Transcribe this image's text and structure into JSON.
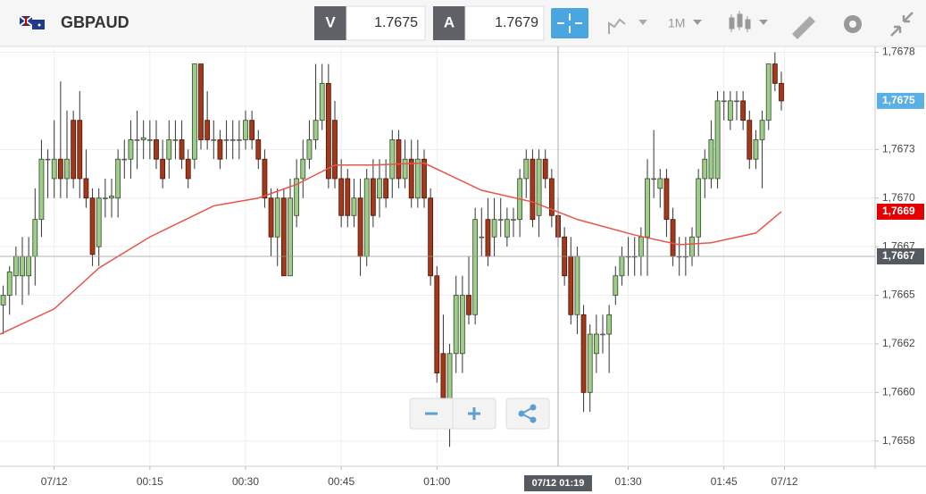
{
  "toolbar": {
    "symbol": "GBPAUD",
    "bid_label": "V",
    "bid": "1.7675",
    "ask_label": "A",
    "ask": "1.7679",
    "timeframe": "1M"
  },
  "chart_data": {
    "type": "candlestick",
    "x": [
      -8,
      -7,
      -6,
      -5,
      -4,
      -3,
      -2,
      -1,
      0,
      1,
      2,
      3,
      4,
      5,
      6,
      7,
      8,
      9,
      10,
      11,
      12,
      13,
      14,
      15,
      16,
      17,
      18,
      19,
      20,
      21,
      22,
      23,
      24,
      25,
      26,
      27,
      28,
      29,
      30,
      31,
      32,
      33,
      34,
      35,
      36,
      37,
      38,
      39,
      40,
      41,
      42,
      43,
      44,
      45,
      46,
      47,
      48,
      49,
      50,
      51,
      52,
      53,
      54,
      55,
      56,
      57,
      58,
      59,
      60,
      61,
      62,
      63,
      64,
      65,
      66,
      67,
      68,
      69,
      70,
      71,
      72,
      73,
      74,
      75,
      76,
      77,
      78,
      79,
      80,
      81,
      82,
      83,
      84,
      85,
      86,
      87,
      88,
      89,
      90,
      91,
      92,
      93,
      94,
      95,
      96,
      97,
      98,
      99,
      100,
      101,
      102,
      103,
      104,
      105,
      106,
      107,
      108,
      109,
      110,
      111,
      112,
      113,
      114
    ],
    "open": [
      1.76645,
      1.7665,
      1.7666,
      1.7666,
      1.7666,
      1.7667,
      1.76689,
      1.7672,
      1.7671,
      1.7672,
      1.7671,
      1.7674,
      1.7674,
      1.7671,
      1.767,
      1.76675,
      1.767,
      1.767,
      1.767,
      1.7672,
      1.7672,
      1.7673,
      1.7673,
      1.7673,
      1.7673,
      1.7672,
      1.7672,
      1.7673,
      1.7673,
      1.7672,
      1.7672,
      1.76769,
      1.7674,
      1.7673,
      1.7673,
      1.7673,
      1.7673,
      1.7673,
      1.7673,
      1.7674,
      1.7673,
      1.7672,
      1.767,
      1.7668,
      1.767,
      1.7666,
      1.76691,
      1.7671,
      1.7672,
      1.7673,
      1.7674,
      1.76759,
      1.7674,
      1.7671,
      1.7671,
      1.76691,
      1.767,
      1.7667,
      1.7671,
      1.767,
      1.7671,
      1.7671,
      1.7673,
      1.7671,
      1.7672,
      1.767,
      1.7672,
      1.767,
      1.7666,
      1.7662,
      1.7659,
      1.7662,
      1.7662,
      1.7665,
      1.7664,
      1.7668,
      1.76689,
      1.7668,
      1.76689,
      1.7668,
      1.76689,
      1.76689,
      1.7671,
      1.7672,
      1.76691,
      1.7672,
      1.7671,
      1.76691,
      1.7668,
      1.7667,
      1.7664,
      1.7664,
      1.766,
      1.7662,
      1.7663,
      1.7663,
      1.7665,
      1.7666,
      1.7667,
      1.7667,
      1.7667,
      1.7668,
      1.7671,
      1.76705,
      1.7671,
      1.76689,
      1.7667,
      1.7667,
      1.7667,
      1.7668,
      1.7671,
      1.7671,
      1.7671,
      1.7675,
      1.7674,
      1.7675,
      1.7675,
      1.7674,
      1.7672,
      1.7673,
      1.7674,
      1.76769,
      1.76759
    ],
    "high": [
      1.76655,
      1.76665,
      1.76675,
      1.7668,
      1.7668,
      1.76705,
      1.7673,
      1.76725,
      1.7674,
      1.7676,
      1.76745,
      1.76745,
      1.76755,
      1.76725,
      1.76705,
      1.76705,
      1.7671,
      1.7671,
      1.76725,
      1.7673,
      1.7674,
      1.76745,
      1.7674,
      1.7674,
      1.7674,
      1.7673,
      1.7674,
      1.7674,
      1.7674,
      1.76725,
      1.76769,
      1.76769,
      1.76755,
      1.7674,
      1.76735,
      1.7674,
      1.7674,
      1.7674,
      1.76745,
      1.76745,
      1.76735,
      1.76725,
      1.76705,
      1.76705,
      1.76705,
      1.7671,
      1.7672,
      1.7673,
      1.7674,
      1.76769,
      1.76769,
      1.76769,
      1.7675,
      1.7672,
      1.76715,
      1.7671,
      1.7671,
      1.76715,
      1.7672,
      1.7672,
      1.7672,
      1.76735,
      1.76735,
      1.7673,
      1.7673,
      1.7673,
      1.76725,
      1.76705,
      1.76665,
      1.7664,
      1.76625,
      1.7666,
      1.7666,
      1.7667,
      1.76695,
      1.76695,
      1.767,
      1.767,
      1.767,
      1.76695,
      1.76695,
      1.76715,
      1.76725,
      1.76725,
      1.76725,
      1.76725,
      1.76715,
      1.767,
      1.76685,
      1.7668,
      1.76675,
      1.76645,
      1.76635,
      1.7664,
      1.7664,
      1.76645,
      1.76665,
      1.76675,
      1.7668,
      1.7668,
      1.76685,
      1.7672,
      1.76735,
      1.76715,
      1.76715,
      1.76695,
      1.7668,
      1.7668,
      1.76685,
      1.76715,
      1.76725,
      1.7674,
      1.76755,
      1.76755,
      1.76755,
      1.76755,
      1.76755,
      1.76745,
      1.76735,
      1.76745,
      1.76769,
      1.76775,
      1.76765
    ],
    "low": [
      1.7663,
      1.7664,
      1.7665,
      1.76645,
      1.7665,
      1.76655,
      1.7668,
      1.767,
      1.767,
      1.767,
      1.767,
      1.76705,
      1.767,
      1.76695,
      1.76665,
      1.76665,
      1.7669,
      1.7669,
      1.7669,
      1.7671,
      1.7671,
      1.76715,
      1.7672,
      1.7672,
      1.76715,
      1.76705,
      1.7671,
      1.7672,
      1.76715,
      1.76705,
      1.76715,
      1.76725,
      1.76725,
      1.7672,
      1.76715,
      1.7672,
      1.7672,
      1.7672,
      1.76725,
      1.76725,
      1.76715,
      1.76695,
      1.7667,
      1.76665,
      1.7666,
      1.7666,
      1.76685,
      1.767,
      1.76715,
      1.76725,
      1.76735,
      1.76705,
      1.76705,
      1.76685,
      1.76685,
      1.76685,
      1.7666,
      1.76665,
      1.76685,
      1.7669,
      1.76695,
      1.767,
      1.76705,
      1.76705,
      1.76695,
      1.76695,
      1.76695,
      1.76655,
      1.76605,
      1.76585,
      1.76572,
      1.7661,
      1.7661,
      1.76635,
      1.76635,
      1.7667,
      1.76665,
      1.7667,
      1.7668,
      1.76675,
      1.7668,
      1.7668,
      1.767,
      1.76685,
      1.7668,
      1.76705,
      1.76685,
      1.76675,
      1.76655,
      1.76635,
      1.7663,
      1.7659,
      1.7659,
      1.7661,
      1.7662,
      1.7661,
      1.76645,
      1.76655,
      1.7666,
      1.7666,
      1.7666,
      1.7666,
      1.767,
      1.76695,
      1.7668,
      1.76665,
      1.7666,
      1.7666,
      1.76665,
      1.7667,
      1.767,
      1.76705,
      1.76705,
      1.7674,
      1.76735,
      1.7674,
      1.76735,
      1.76715,
      1.76715,
      1.76705,
      1.76735,
      1.76755,
      1.76745
    ],
    "close": [
      1.7665,
      1.76662,
      1.7667,
      1.7667,
      1.7667,
      1.76689,
      1.7672,
      1.7672,
      1.7672,
      1.7671,
      1.7672,
      1.7671,
      1.7671,
      1.767,
      1.76671,
      1.767,
      1.767,
      1.76701,
      1.7672,
      1.7672,
      1.7673,
      1.7673,
      1.76731,
      1.7673,
      1.7672,
      1.7671,
      1.7673,
      1.7673,
      1.7672,
      1.7671,
      1.76769,
      1.7673,
      1.7673,
      1.7673,
      1.7672,
      1.7673,
      1.7673,
      1.7673,
      1.7674,
      1.7673,
      1.7672,
      1.767,
      1.7668,
      1.767,
      1.7666,
      1.767,
      1.7671,
      1.7672,
      1.7673,
      1.7674,
      1.76759,
      1.7671,
      1.7671,
      1.76691,
      1.76691,
      1.767,
      1.7667,
      1.7671,
      1.76691,
      1.7671,
      1.767,
      1.7673,
      1.7671,
      1.7672,
      1.767,
      1.7672,
      1.767,
      1.7666,
      1.7661,
      1.7659,
      1.7662,
      1.7665,
      1.7665,
      1.7664,
      1.76689,
      1.7668,
      1.7667,
      1.76689,
      1.76689,
      1.76689,
      1.76689,
      1.7671,
      1.7672,
      1.76689,
      1.7672,
      1.7671,
      1.76691,
      1.7668,
      1.7666,
      1.7664,
      1.7667,
      1.766,
      1.7663,
      1.7663,
      1.7663,
      1.7664,
      1.7666,
      1.7667,
      1.7667,
      1.7667,
      1.7668,
      1.7671,
      1.7671,
      1.7671,
      1.76689,
      1.7667,
      1.7667,
      1.7667,
      1.7668,
      1.7671,
      1.7672,
      1.7673,
      1.7675,
      1.7675,
      1.7675,
      1.7675,
      1.7674,
      1.7672,
      1.7673,
      1.7674,
      1.76769,
      1.76759,
      1.7675
    ],
    "up_color": "#9fcc8a",
    "down_color": "#a3381b",
    "ma": {
      "color": "#e8534a",
      "x": [
        -8.5,
        0,
        7,
        15,
        25,
        32,
        38,
        44,
        50,
        58,
        67,
        75,
        82,
        91,
        98,
        103,
        110,
        114
      ],
      "values": [
        1.7663,
        1.76643,
        1.76664,
        1.7668,
        1.76696,
        1.767,
        1.76707,
        1.76717,
        1.76717,
        1.76718,
        1.76704,
        1.76698,
        1.76689,
        1.76681,
        1.76676,
        1.76677,
        1.76682,
        1.76693
      ]
    },
    "xlim": [
      -8.5,
      128.7
    ],
    "ylim": [
      1.76562,
      1.76778
    ],
    "xticks": [
      {
        "value": 0,
        "label": "07/12"
      },
      {
        "value": 15,
        "label": "00:15"
      },
      {
        "value": 30,
        "label": "00:30"
      },
      {
        "value": 45,
        "label": "00:45"
      },
      {
        "value": 60,
        "label": "01:00"
      },
      {
        "value": 90,
        "label": "01:30"
      },
      {
        "value": 105,
        "label": "01:45"
      },
      {
        "value": 114.5,
        "label": "07/12"
      }
    ],
    "yticks": [
      {
        "value": 1.76775,
        "label": "1,7678"
      },
      {
        "value": 1.76725,
        "label": "1,7673"
      },
      {
        "value": 1.767,
        "label": "1,7670"
      },
      {
        "value": 1.76675,
        "label": "1,7667"
      },
      {
        "value": 1.7665,
        "label": "1,7665"
      },
      {
        "value": 1.76625,
        "label": "1,7662"
      },
      {
        "value": 1.766,
        "label": "1,7660"
      },
      {
        "value": 1.76575,
        "label": "1,7658"
      }
    ],
    "grid": true,
    "price_labels": [
      {
        "value": 1.7675,
        "label": "1,7675",
        "color": "#5ab0e2"
      },
      {
        "value": 1.76693,
        "label": "1,7669",
        "color": "#e40000"
      }
    ],
    "crosshair": {
      "x": 79,
      "y": 1.7667,
      "x_label": "07/12 01:19",
      "y_label": "1,7667",
      "color": "#555a60"
    }
  }
}
